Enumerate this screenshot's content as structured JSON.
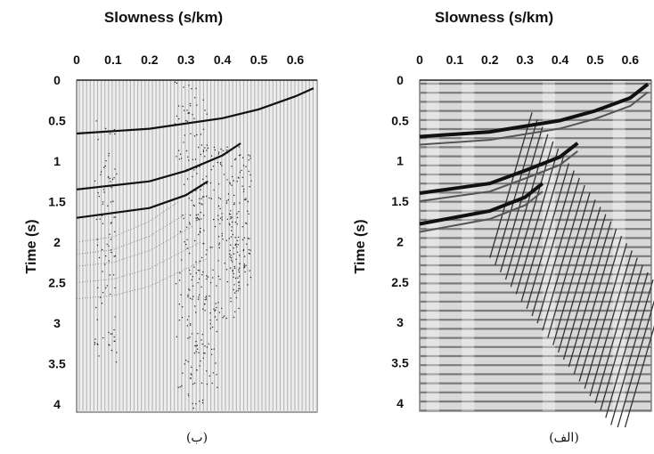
{
  "figure": {
    "panels": [
      {
        "id": "left",
        "title": "Slowness (s/km)",
        "ylabel": "Time (s)",
        "caption": "(ب)",
        "x_ticks": [
          "0",
          "0.1",
          "0.2",
          "0.3",
          "0.4",
          "0.5",
          "0.6"
        ],
        "y_ticks": [
          "0",
          "0.5",
          "1",
          "1.5",
          "2",
          "2.5",
          "3",
          "3.5",
          "4"
        ]
      },
      {
        "id": "right",
        "title": "Slowness (s/km)",
        "ylabel": "Time (s)",
        "caption": "(الف)",
        "x_ticks": [
          "0",
          "0.1",
          "0.2",
          "0.3",
          "0.4",
          "0.5",
          "0.6"
        ],
        "y_ticks": [
          "0",
          "0.5",
          "1",
          "1.5",
          "2",
          "2.5",
          "3",
          "3.5",
          "4"
        ]
      }
    ]
  },
  "chart_data": [
    {
      "type": "line",
      "panel": "left",
      "style": "sparse tau-p transform (dotted traces on grey vertical gridlines)",
      "xlim": [
        0,
        0.66
      ],
      "ylim": [
        0,
        4.1
      ],
      "x_reversed": false,
      "y_reversed": true,
      "series": [
        {
          "x": [
            0,
            0.2,
            0.4,
            0.5,
            0.6,
            0.65
          ],
          "y": [
            0.66,
            0.6,
            0.47,
            0.36,
            0.2,
            0.1
          ]
        },
        {
          "x": [
            0,
            0.2,
            0.3,
            0.4,
            0.45
          ],
          "y": [
            1.35,
            1.25,
            1.12,
            0.93,
            0.78
          ]
        },
        {
          "x": [
            0,
            0.2,
            0.3,
            0.36
          ],
          "y": [
            1.7,
            1.58,
            1.42,
            1.25
          ]
        }
      ]
    },
    {
      "type": "line",
      "panel": "right",
      "style": "dense tau-p transform (wiggle traces on horizontal stripes)",
      "xlim": [
        0,
        0.66
      ],
      "ylim": [
        0,
        4.1
      ],
      "x_reversed": false,
      "y_reversed": true,
      "series": [
        {
          "x": [
            0,
            0.2,
            0.4,
            0.5,
            0.6,
            0.65
          ],
          "y": [
            0.7,
            0.64,
            0.5,
            0.38,
            0.22,
            0.05
          ]
        },
        {
          "x": [
            0,
            0.2,
            0.3,
            0.4,
            0.45
          ],
          "y": [
            1.4,
            1.28,
            1.12,
            0.95,
            0.78
          ]
        },
        {
          "x": [
            0,
            0.2,
            0.3,
            0.35
          ],
          "y": [
            1.78,
            1.62,
            1.45,
            1.28
          ]
        }
      ]
    }
  ]
}
